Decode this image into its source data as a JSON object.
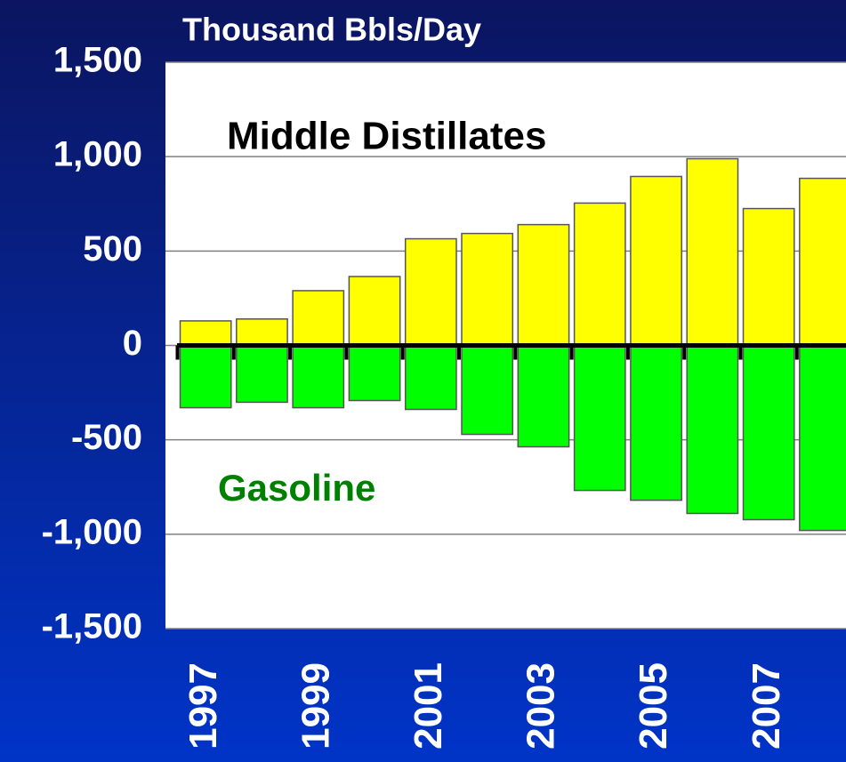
{
  "chart_data": {
    "type": "bar",
    "title": "Thousand Bbls/Day",
    "categories": [
      "1997",
      null,
      "1999",
      null,
      "2001",
      null,
      "2003",
      null,
      "2005",
      null,
      "2007",
      null
    ],
    "series": [
      {
        "name": "Middle Distillates",
        "color": "#ffff00",
        "values": [
          130,
          140,
          290,
          365,
          565,
          593,
          640,
          754,
          895,
          989,
          725,
          885
        ]
      },
      {
        "name": "Gasoline",
        "color": "#00ff00",
        "values": [
          -330,
          -301,
          -330,
          -292,
          -339,
          -471,
          -537,
          -768,
          -820,
          -890,
          -923,
          -980
        ]
      }
    ],
    "ylim": [
      -1500,
      1500
    ],
    "yticks": [
      {
        "value": -1500,
        "label": "-1,500"
      },
      {
        "value": -1000,
        "label": "-1,000"
      },
      -500,
      0,
      500,
      {
        "value": 1000,
        "label": "1,000"
      },
      {
        "value": 1500,
        "label": "1,500"
      }
    ],
    "grid": true
  }
}
